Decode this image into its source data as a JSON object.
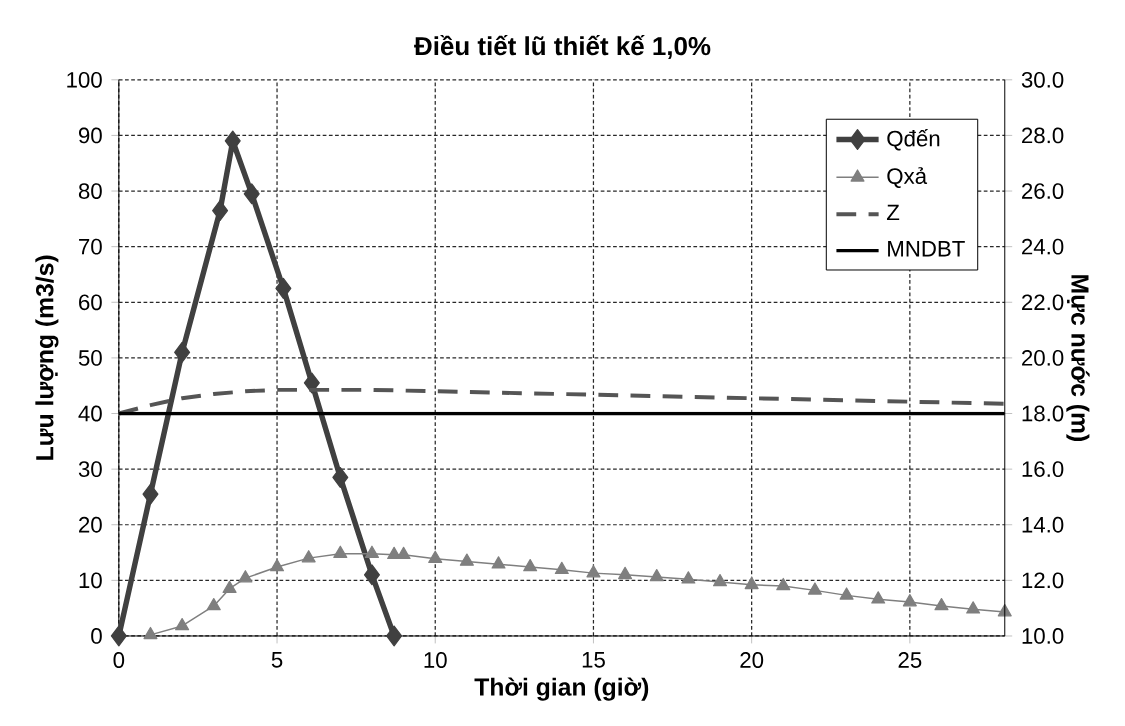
{
  "chart_data": {
    "type": "line",
    "title": "Điều tiết lũ thiết kế 1,0%",
    "xlabel": "Thời gian (giờ)",
    "ylabel": "Lưu lượng (m3/s)",
    "y2label": "Mực nước (m)",
    "xlim": [
      0,
      28
    ],
    "xticks": [
      0,
      5,
      10,
      15,
      20,
      25
    ],
    "ylim": [
      0,
      100
    ],
    "yticks": [
      0,
      10,
      20,
      30,
      40,
      50,
      60,
      70,
      80,
      90,
      100
    ],
    "y2lim": [
      10,
      30
    ],
    "y2ticks": [
      {
        "value": 10,
        "label": "10.0"
      },
      {
        "value": 12,
        "label": "12.0"
      },
      {
        "value": 14,
        "label": "14.0"
      },
      {
        "value": 16,
        "label": "16.0"
      },
      {
        "value": 18,
        "label": "18.0"
      },
      {
        "value": 20,
        "label": "20.0"
      },
      {
        "value": 22,
        "label": "22.0"
      },
      {
        "value": 24,
        "label": "24.0"
      },
      {
        "value": 26,
        "label": "26.0"
      },
      {
        "value": 28,
        "label": "28.0"
      },
      {
        "value": 30,
        "label": "30.0"
      }
    ],
    "grid": true,
    "legend": "top right",
    "series": [
      {
        "name": "Qđến",
        "color": "#404040",
        "marker": "diamond",
        "line_style": "solid",
        "x": [
          0,
          1,
          2,
          3.2,
          3.6,
          4.2,
          5.2,
          6.1,
          7,
          8,
          8.7
        ],
        "values": [
          0,
          25.5,
          51,
          76.5,
          89,
          79.5,
          62.5,
          45.5,
          28.5,
          11,
          0
        ]
      },
      {
        "name": "Qxả",
        "color": "#7f7f7f",
        "marker": "triangle",
        "line_style": "solid",
        "x": [
          1,
          2,
          3,
          3.5,
          4,
          5,
          6,
          7,
          8,
          8.7,
          9,
          10,
          11,
          12,
          13,
          14,
          15,
          16,
          17,
          18,
          19,
          20,
          21,
          22,
          23,
          24,
          25,
          26,
          27,
          28
        ],
        "values": [
          0.2,
          1.8,
          5.4,
          8.5,
          10.4,
          12.4,
          14,
          14.8,
          14.8,
          14.6,
          14.6,
          13.9,
          13.4,
          12.9,
          12.4,
          11.9,
          11.3,
          11,
          10.6,
          10.2,
          9.7,
          9.2,
          9,
          8.2,
          7.3,
          6.6,
          6.1,
          5.4,
          4.8,
          4.3
        ]
      },
      {
        "name": "Z",
        "color": "#555555",
        "axis": "y2",
        "marker": "none",
        "line_style": "dashed",
        "x": [
          0,
          1,
          2,
          3,
          4,
          5,
          6,
          7,
          8,
          10,
          12,
          14,
          16,
          18,
          20,
          22,
          24,
          26,
          28
        ],
        "values": [
          18,
          18.3,
          18.55,
          18.7,
          18.8,
          18.85,
          18.85,
          18.85,
          18.85,
          18.8,
          18.75,
          18.7,
          18.65,
          18.6,
          18.55,
          18.5,
          18.45,
          18.4,
          18.35
        ]
      },
      {
        "name": "MNDBT",
        "color": "#000000",
        "axis": "y2",
        "marker": "none",
        "line_style": "solid",
        "x": [
          0,
          28
        ],
        "values": [
          18,
          18
        ]
      }
    ]
  }
}
